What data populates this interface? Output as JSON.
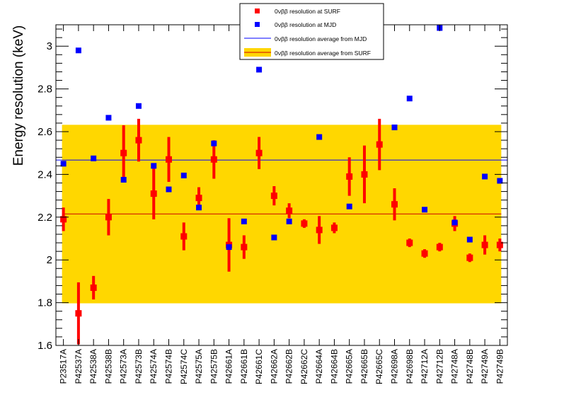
{
  "chart_data": {
    "type": "scatter",
    "title": "",
    "xlabel": "",
    "ylabel": "Energy resolution (keV)",
    "ylim": [
      1.6,
      3.1
    ],
    "yticks": [
      1.6,
      1.8,
      2.0,
      2.2,
      2.4,
      2.6,
      2.8,
      3.0
    ],
    "ytick_labels": [
      "1.6",
      "1.8",
      "2",
      "2.2",
      "2.4",
      "2.6",
      "2.8",
      "3"
    ],
    "categories": [
      "P23517A",
      "P42537A",
      "P42538A",
      "P42538B",
      "P42573A",
      "P42573B",
      "P42574A",
      "P42574B",
      "P42574C",
      "P42575A",
      "P42575B",
      "P42661A",
      "P42661B",
      "P42661C",
      "P42662A",
      "P42662B",
      "P42662C",
      "P42664A",
      "P42664B",
      "P42665A",
      "P42665B",
      "P42665C",
      "P42698A",
      "P42698B",
      "P42712A",
      "P42712B",
      "P42748A",
      "P42748B",
      "P42749A",
      "P42749B"
    ],
    "series": [
      {
        "name": "0νββ resolution at SURF",
        "color": "#ff0000",
        "marker": "square-with-errorbars",
        "values": [
          2.19,
          1.75,
          1.87,
          2.2,
          2.5,
          2.56,
          2.31,
          2.47,
          2.11,
          2.29,
          2.47,
          2.07,
          2.06,
          2.5,
          2.3,
          2.23,
          2.17,
          2.14,
          2.15,
          2.39,
          2.4,
          2.54,
          2.26,
          2.08,
          2.03,
          2.06,
          2.17,
          2.01,
          2.07,
          2.07
        ],
        "errors": [
          0.055,
          0.145,
          0.055,
          0.085,
          0.13,
          0.1,
          0.12,
          0.105,
          0.065,
          0.05,
          0.09,
          0.125,
          0.055,
          0.075,
          0.045,
          0.035,
          0.02,
          0.065,
          0.025,
          0.09,
          0.135,
          0.12,
          0.075,
          0.02,
          0.02,
          0.02,
          0.035,
          0.02,
          0.045,
          0.03
        ]
      },
      {
        "name": "0νββ resolution at MJD",
        "color": "#0000ff",
        "marker": "square",
        "values": [
          2.45,
          2.98,
          2.475,
          2.665,
          2.375,
          2.72,
          2.44,
          2.33,
          2.395,
          2.245,
          2.545,
          2.06,
          2.18,
          2.89,
          2.105,
          2.18,
          null,
          2.575,
          null,
          2.25,
          null,
          null,
          2.62,
          2.755,
          2.235,
          3.085,
          2.175,
          2.095,
          2.39,
          2.37
        ]
      }
    ],
    "reference_lines": [
      {
        "name": "0νββ resolution average from MJD",
        "color": "#0000ff",
        "value": 2.467
      },
      {
        "name": "0νββ resolution average from SURF",
        "color": "#cc0000",
        "value": 2.215,
        "band": [
          1.797,
          2.632
        ],
        "band_color": "#ffd700"
      }
    ],
    "legend": {
      "position": "top-center",
      "entries": [
        "0νββ resolution at SURF",
        "0νββ resolution at MJD",
        "0νββ resolution average from MJD",
        "0νββ resolution average from SURF"
      ]
    }
  }
}
